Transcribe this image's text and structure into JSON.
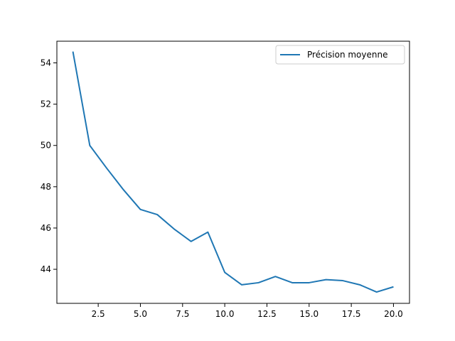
{
  "chart_data": {
    "type": "line",
    "title": "",
    "xlabel": "",
    "ylabel": "",
    "xlim": [
      0.05,
      20.95
    ],
    "ylim": [
      42.35,
      55.05
    ],
    "xticks": [
      2.5,
      5.0,
      7.5,
      10.0,
      12.5,
      15.0,
      17.5,
      20.0
    ],
    "xtick_labels": [
      "2.5",
      "5.0",
      "7.5",
      "10.0",
      "12.5",
      "15.0",
      "17.5",
      "20.0"
    ],
    "yticks": [
      44,
      46,
      48,
      50,
      52,
      54
    ],
    "ytick_labels": [
      "44",
      "46",
      "48",
      "50",
      "52",
      "54"
    ],
    "grid": false,
    "legend_position": "upper right",
    "series": [
      {
        "name": "Précision moyenne",
        "color": "#1f77b4",
        "x": [
          1,
          2,
          3,
          4,
          5,
          6,
          7,
          8,
          9,
          10,
          11,
          12,
          13,
          14,
          15,
          16,
          17,
          18,
          19,
          20
        ],
        "y": [
          54.55,
          50.0,
          48.9,
          47.85,
          46.9,
          46.65,
          45.95,
          45.35,
          45.8,
          43.85,
          43.25,
          43.35,
          43.65,
          43.35,
          43.35,
          43.5,
          43.45,
          43.25,
          42.9,
          43.15
        ]
      }
    ]
  }
}
